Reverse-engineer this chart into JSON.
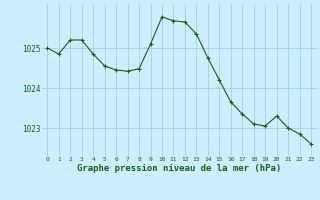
{
  "x": [
    0,
    1,
    2,
    3,
    4,
    5,
    6,
    7,
    8,
    9,
    10,
    11,
    12,
    13,
    14,
    15,
    16,
    17,
    18,
    19,
    20,
    21,
    22,
    23
  ],
  "y": [
    1025.0,
    1024.85,
    1025.2,
    1025.2,
    1024.85,
    1024.55,
    1024.45,
    1024.42,
    1024.48,
    1025.1,
    1025.78,
    1025.68,
    1025.65,
    1025.35,
    1024.75,
    1024.2,
    1023.65,
    1023.35,
    1023.1,
    1023.05,
    1023.3,
    1023.0,
    1022.85,
    1022.6
  ],
  "line_color": "#1a5c1a",
  "marker_color": "#1a5c1a",
  "bg_color": "#cceeff",
  "grid_color": "#99cccc",
  "xlabel": "Graphe pression niveau de la mer (hPa)",
  "xlabel_color": "#1a5c1a",
  "tick_label_color": "#1a5c1a",
  "ylim": [
    1022.3,
    1026.1
  ],
  "yticks": [
    1023,
    1024,
    1025
  ],
  "xticks": [
    0,
    1,
    2,
    3,
    4,
    5,
    6,
    7,
    8,
    9,
    10,
    11,
    12,
    13,
    14,
    15,
    16,
    17,
    18,
    19,
    20,
    21,
    22,
    23
  ],
  "figsize": [
    3.2,
    2.0
  ],
  "dpi": 100
}
